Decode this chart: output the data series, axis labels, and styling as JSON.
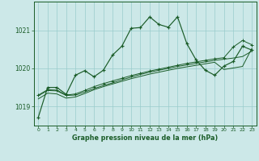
{
  "bg_color": "#cce8e8",
  "grid_color": "#99cccc",
  "line_color": "#1a5c28",
  "xlabel": "Graphe pression niveau de la mer (hPa)",
  "ylim": [
    1018.5,
    1021.75
  ],
  "xlim": [
    -0.5,
    23.5
  ],
  "yticks": [
    1019,
    1020,
    1021
  ],
  "xticks": [
    0,
    1,
    2,
    3,
    4,
    5,
    6,
    7,
    8,
    9,
    10,
    11,
    12,
    13,
    14,
    15,
    16,
    17,
    18,
    19,
    20,
    21,
    22,
    23
  ],
  "series_main": [
    1018.72,
    1019.5,
    1019.5,
    1019.32,
    1019.82,
    1019.94,
    1019.78,
    1019.95,
    1020.35,
    1020.58,
    1021.05,
    1021.07,
    1021.35,
    1021.15,
    1021.08,
    1021.35,
    1020.65,
    1020.22,
    1019.95,
    1019.82,
    1020.06,
    1020.18,
    1020.58,
    1020.48
  ],
  "series_t1": [
    1019.28,
    1019.42,
    1019.41,
    1019.29,
    1019.3,
    1019.38,
    1019.47,
    1019.55,
    1019.62,
    1019.7,
    1019.77,
    1019.84,
    1019.9,
    1019.95,
    1020.0,
    1020.05,
    1020.09,
    1020.13,
    1020.17,
    1020.21,
    1020.24,
    1020.27,
    1020.31,
    1020.45
  ],
  "series_t2": [
    1019.3,
    1019.44,
    1019.43,
    1019.3,
    1019.33,
    1019.42,
    1019.52,
    1019.6,
    1019.67,
    1019.74,
    1019.81,
    1019.87,
    1019.93,
    1019.98,
    1020.03,
    1020.08,
    1020.13,
    1020.17,
    1020.21,
    1020.25,
    1020.28,
    1020.56,
    1020.73,
    1020.62
  ],
  "series_t3": [
    1019.2,
    1019.35,
    1019.33,
    1019.22,
    1019.25,
    1019.34,
    1019.44,
    1019.52,
    1019.59,
    1019.66,
    1019.73,
    1019.79,
    1019.85,
    1019.9,
    1019.95,
    1020.0,
    1020.04,
    1020.08,
    1020.12,
    1020.16,
    1019.97,
    1020.01,
    1020.05,
    1020.52
  ]
}
